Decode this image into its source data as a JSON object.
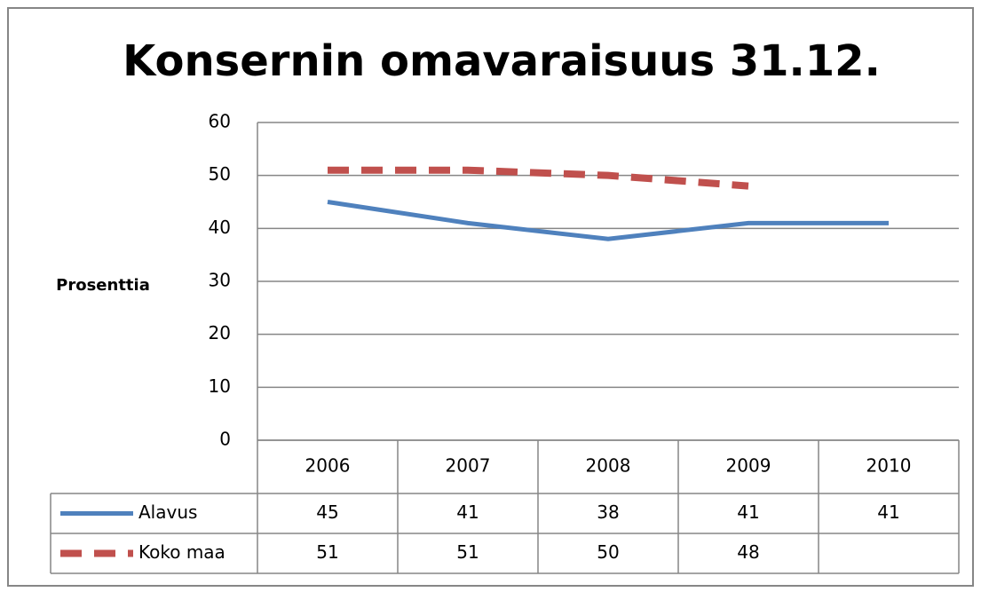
{
  "chart_data": {
    "type": "line",
    "title": "Konsernin omavaraisuus 31.12.",
    "y_label": "Prosenttia",
    "categories": [
      "2006",
      "2007",
      "2008",
      "2009",
      "2010"
    ],
    "series": [
      {
        "name": "Alavus",
        "color": "#4f81bd",
        "dashed": false,
        "values": [
          45,
          41,
          38,
          41,
          41
        ]
      },
      {
        "name": "Koko maa",
        "color": "#c0504d",
        "dashed": true,
        "values": [
          51,
          51,
          50,
          48,
          null
        ]
      }
    ],
    "ylim": [
      0,
      60
    ],
    "yticks": [
      0,
      10,
      20,
      30,
      40,
      50,
      60
    ],
    "grid": true,
    "data_table": true
  }
}
